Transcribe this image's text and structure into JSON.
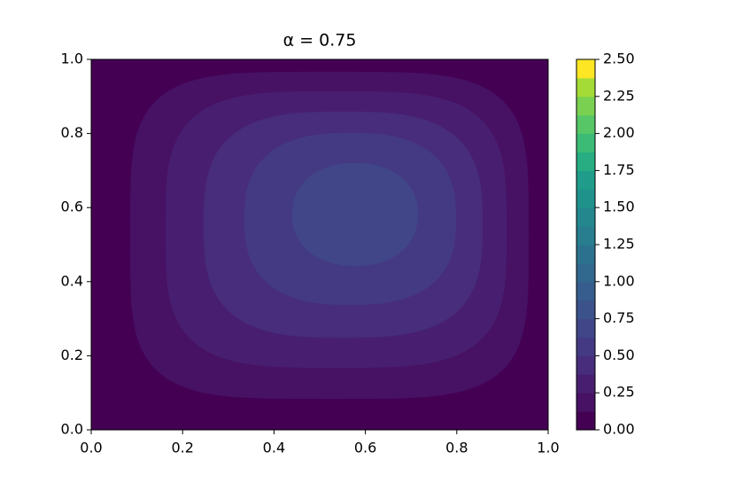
{
  "chart_data": {
    "type": "contourf",
    "title": "α = 0.75",
    "xlim": [
      0,
      1
    ],
    "ylim": [
      0,
      1
    ],
    "xticks": [
      {
        "value": 0,
        "label": "0.0"
      },
      {
        "value": 0.2,
        "label": "0.2"
      },
      {
        "value": 0.4,
        "label": "0.4"
      },
      {
        "value": 0.6,
        "label": "0.6"
      },
      {
        "value": 0.8,
        "label": "0.8"
      },
      {
        "value": 1,
        "label": "1.0"
      }
    ],
    "yticks": [
      {
        "value": 0,
        "label": "0.0"
      },
      {
        "value": 0.2,
        "label": "0.2"
      },
      {
        "value": 0.4,
        "label": "0.4"
      },
      {
        "value": 0.6,
        "label": "0.6"
      },
      {
        "value": 0.8,
        "label": "0.8"
      },
      {
        "value": 1,
        "label": "1.0"
      }
    ],
    "levels": [
      0,
      0.125,
      0.25,
      0.375,
      0.5,
      0.625,
      0.75,
      0.875,
      1,
      1.125,
      1.25,
      1.375,
      1.5,
      1.625,
      1.75,
      1.875,
      2,
      2.125,
      2.25,
      2.375,
      2.5
    ],
    "colors": [
      "#440154",
      "#471164",
      "#481f70",
      "#472d7b",
      "#443a83",
      "#404688",
      "#3b528b",
      "#365d8d",
      "#31688e",
      "#2c728e",
      "#287d8e",
      "#24878e",
      "#20928c",
      "#1f9d8a",
      "#27ad81",
      "#3bbb75",
      "#56c667",
      "#7ad151",
      "#a5db36",
      "#fde725"
    ],
    "colorbar_ticks": [
      {
        "value": 0,
        "label": "0.00"
      },
      {
        "value": 0.25,
        "label": "0.25"
      },
      {
        "value": 0.5,
        "label": "0.50"
      },
      {
        "value": 0.75,
        "label": "0.75"
      },
      {
        "value": 1,
        "label": "1.00"
      },
      {
        "value": 1.25,
        "label": "1.25"
      },
      {
        "value": 1.5,
        "label": "1.50"
      },
      {
        "value": 1.75,
        "label": "1.75"
      },
      {
        "value": 2,
        "label": "2.00"
      },
      {
        "value": 2.25,
        "label": "2.25"
      },
      {
        "value": 2.5,
        "label": "2.50"
      }
    ]
  }
}
